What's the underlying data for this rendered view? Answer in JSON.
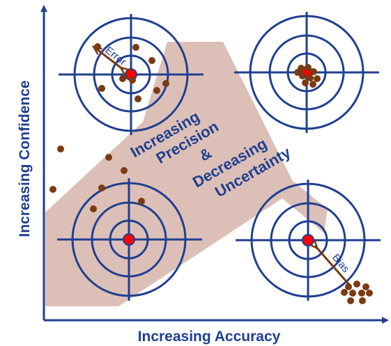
{
  "labels": {
    "x_axis": "Increasing Accuracy",
    "y_axis": "Increasing Confidence",
    "center_lines": [
      "Increasing",
      "Precision",
      "&",
      "Decreasing",
      "Uncertainty"
    ],
    "error": "Error",
    "bias": "Bias"
  },
  "colors": {
    "axis": "#1f3f8f",
    "band": "#dcc0b8",
    "ring": "#1f3f8f",
    "center": "#ff0000",
    "dot": "#7a3a12",
    "arrow": "#7a3a12"
  }
}
